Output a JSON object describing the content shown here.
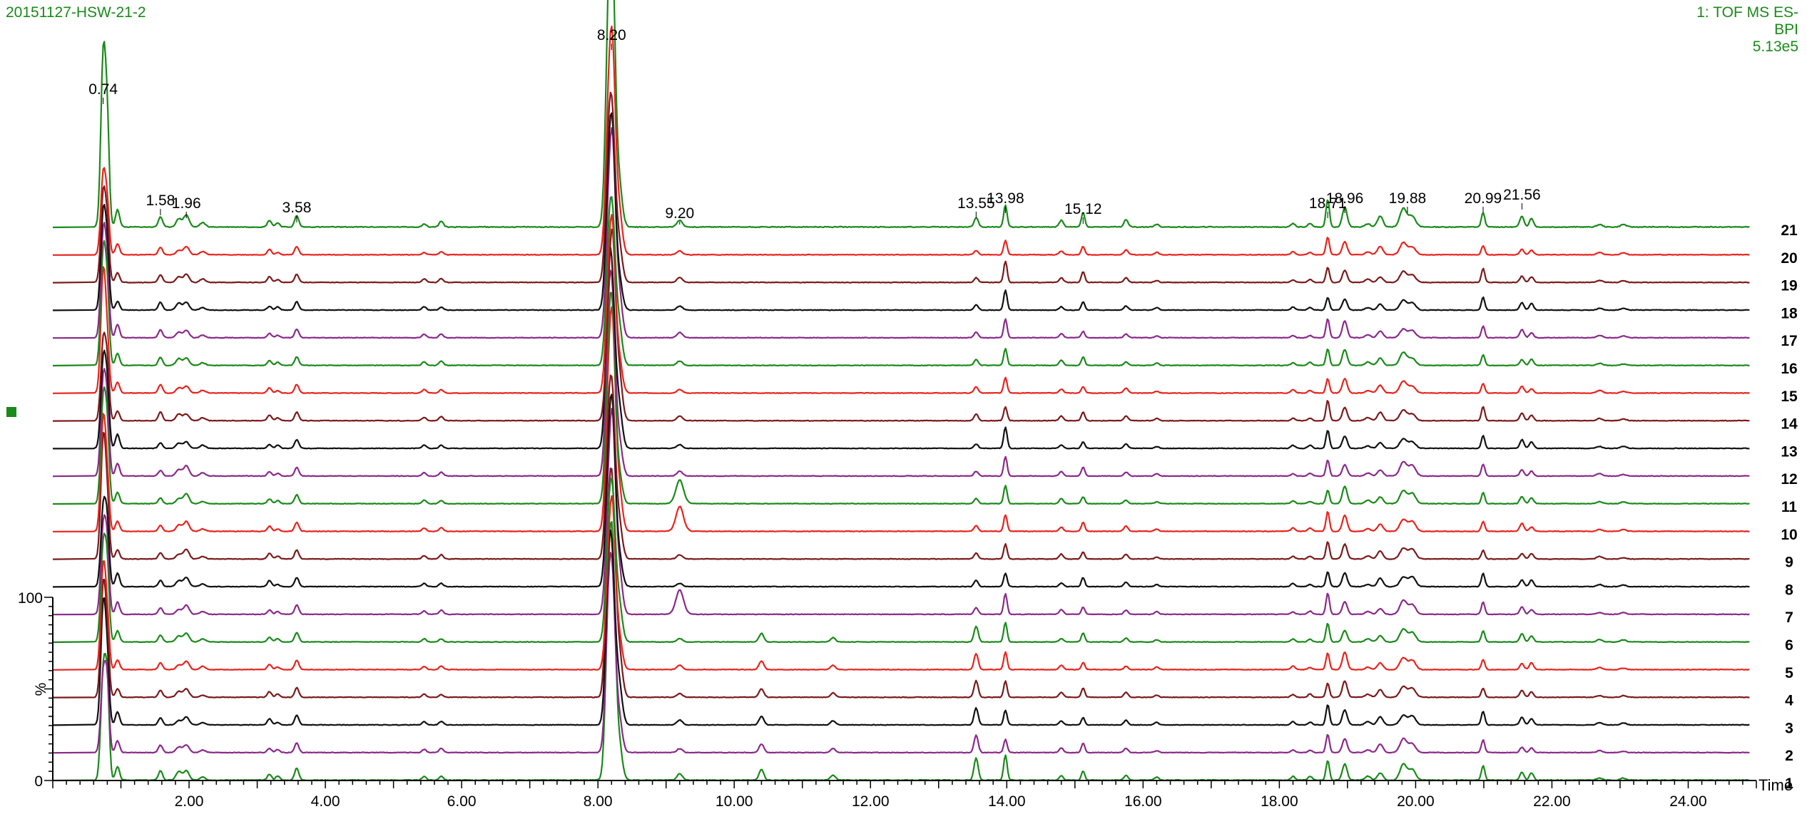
{
  "header": {
    "sample_id": "20151127-HSW-21-2",
    "func": "1: TOF MS ES-",
    "mode": "BPI",
    "intensity": "5.13e5"
  },
  "colors": {
    "green": "#1a8a1a",
    "red": "#e8241e",
    "dark_red": "#7b1a1a",
    "black": "#111111",
    "purple": "#8a2a8a"
  },
  "chart_data": {
    "type": "line",
    "title": "",
    "xlabel": "Time",
    "ylabel": "%",
    "xlim": [
      0,
      25
    ],
    "ylim": [
      0,
      100
    ],
    "x_ticks": [
      2,
      4,
      6,
      8,
      10,
      12,
      14,
      16,
      18,
      20,
      22,
      24
    ],
    "x_tick_labels": [
      "2.00",
      "4.00",
      "6.00",
      "8.00",
      "10.00",
      "12.00",
      "14.00",
      "16.00",
      "18.00",
      "20.00",
      "22.00",
      "24.00"
    ],
    "y_ticks": [
      0,
      100
    ],
    "y_tick_labels": [
      "0",
      "100"
    ],
    "peak_labels": [
      {
        "x": 0.74,
        "label": "0.74"
      },
      {
        "x": 1.58,
        "label": "1.58"
      },
      {
        "x": 1.96,
        "label": "1.96"
      },
      {
        "x": 3.58,
        "label": "3.58"
      },
      {
        "x": 8.2,
        "label": "8.20"
      },
      {
        "x": 9.2,
        "label": "9.20"
      },
      {
        "x": 13.55,
        "label": "13.55"
      },
      {
        "x": 13.98,
        "label": "13.98"
      },
      {
        "x": 15.12,
        "label": "15.12"
      },
      {
        "x": 18.71,
        "label": "18.71"
      },
      {
        "x": 18.96,
        "label": "18.96"
      },
      {
        "x": 19.88,
        "label": "19.88"
      },
      {
        "x": 20.99,
        "label": "20.99"
      },
      {
        "x": 21.56,
        "label": "21.56"
      }
    ],
    "series": [
      {
        "name": "1",
        "color": "green"
      },
      {
        "name": "2",
        "color": "purple"
      },
      {
        "name": "3",
        "color": "black"
      },
      {
        "name": "4",
        "color": "dark_red"
      },
      {
        "name": "5",
        "color": "red"
      },
      {
        "name": "6",
        "color": "green"
      },
      {
        "name": "7",
        "color": "purple"
      },
      {
        "name": "8",
        "color": "black"
      },
      {
        "name": "9",
        "color": "dark_red"
      },
      {
        "name": "10",
        "color": "red"
      },
      {
        "name": "11",
        "color": "green"
      },
      {
        "name": "12",
        "color": "purple"
      },
      {
        "name": "13",
        "color": "black"
      },
      {
        "name": "14",
        "color": "dark_red"
      },
      {
        "name": "15",
        "color": "red"
      },
      {
        "name": "16",
        "color": "green"
      },
      {
        "name": "17",
        "color": "purple"
      },
      {
        "name": "18",
        "color": "black"
      },
      {
        "name": "19",
        "color": "dark_red"
      },
      {
        "name": "20",
        "color": "red"
      },
      {
        "name": "21",
        "color": "green"
      }
    ]
  }
}
